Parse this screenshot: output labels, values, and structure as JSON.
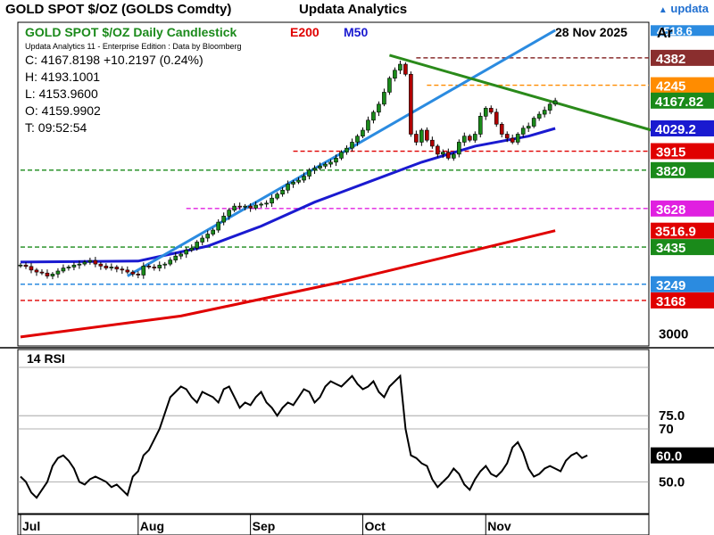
{
  "header": {
    "ticker_title": "GOLD SPOT $/OZ (GOLDS Comdty)",
    "app_name": "Updata Analytics",
    "logo_text": "updata",
    "logo_arrow": "▲"
  },
  "colors": {
    "green_title": "#1b8a1b",
    "e200": "#e00000",
    "m50": "#1a1ad0",
    "up_candle": "#1a8a1a",
    "down_candle": "#b00000",
    "trend_blue": "#2b8be0",
    "trend_green": "#2a8a1a"
  },
  "chart_data": [
    {
      "type": "candlestick",
      "title": "GOLD SPOT $/OZ Daily Candlestick",
      "legend": [
        "E200",
        "M50"
      ],
      "date": "28 Nov 2025",
      "source_line": "Updata Analytics 11 - Enterprise Edition : Data by Bloomberg",
      "ohlc_readout": {
        "c": "C: 4167.8198 +10.2197 (0.24%)",
        "h": "H: 4193.1001",
        "l": "L: 4153.9600",
        "o": "O: 4159.9902",
        "t": "T: 09:52:54"
      },
      "x_labels": [
        {
          "label": "Jul",
          "idx": 0
        },
        {
          "label": "Aug",
          "idx": 22
        },
        {
          "label": "Sep",
          "idx": 43
        },
        {
          "label": "Oct",
          "idx": 64
        },
        {
          "label": "Nov",
          "idx": 87
        }
      ],
      "ylim": [
        2940,
        4560
      ],
      "y_tick_labels": [
        "3000"
      ],
      "top_partial_label": "4518.6",
      "corner_label": "Ar",
      "closes": [
        3345,
        3338,
        3320,
        3310,
        3305,
        3290,
        3300,
        3315,
        3330,
        3335,
        3345,
        3350,
        3360,
        3368,
        3350,
        3340,
        3330,
        3335,
        3325,
        3320,
        3310,
        3300,
        3295,
        3340,
        3335,
        3330,
        3345,
        3350,
        3370,
        3390,
        3400,
        3420,
        3430,
        3460,
        3480,
        3500,
        3520,
        3560,
        3590,
        3620,
        3640,
        3635,
        3640,
        3630,
        3645,
        3650,
        3655,
        3680,
        3700,
        3720,
        3750,
        3760,
        3770,
        3790,
        3820,
        3830,
        3840,
        3850,
        3860,
        3880,
        3910,
        3930,
        3960,
        3990,
        4020,
        4070,
        4110,
        4150,
        4210,
        4280,
        4320,
        4350,
        4300,
        4000,
        3960,
        4020,
        3970,
        3940,
        3900,
        3910,
        3880,
        3900,
        3960,
        3990,
        3970,
        4000,
        4090,
        4130,
        4110,
        4050,
        4000,
        3980,
        3960,
        4000,
        4030,
        4040,
        4080,
        4100,
        4120,
        4150,
        4168
      ],
      "levels": [
        {
          "value": 4382,
          "label": "4382",
          "color": "#8a2e2e",
          "start": 74
        },
        {
          "value": 4245,
          "label": "4245",
          "color": "#ff8c00",
          "start": 76
        },
        {
          "value": 3915,
          "label": "3915",
          "color": "#e00000",
          "start": 51
        },
        {
          "value": 3820,
          "label": "3820",
          "color": "#1a8a1a",
          "start": 0
        },
        {
          "value": 3628,
          "label": "3628",
          "color": "#e020e0",
          "start": 31
        },
        {
          "value": 3435,
          "label": "3435",
          "color": "#1a8a1a",
          "start": 0
        },
        {
          "value": 3249,
          "label": "3249",
          "color": "#2b8be0",
          "start": 0
        },
        {
          "value": 3168,
          "label": "3168",
          "color": "#e00000",
          "start": 0
        }
      ],
      "price_tags": [
        {
          "label": "4167.82",
          "value": 4168,
          "color": "#1a8a1a"
        },
        {
          "label": "4029.2",
          "value": 4029,
          "color": "#1a1ad0"
        },
        {
          "label": "3516.9",
          "value": 3517,
          "color": "#e00000"
        }
      ],
      "e200_series": [
        {
          "idx": 0,
          "v": 2985
        },
        {
          "idx": 30,
          "v": 3090
        },
        {
          "idx": 60,
          "v": 3260
        },
        {
          "idx": 85,
          "v": 3420
        },
        {
          "idx": 100,
          "v": 3517
        }
      ],
      "m50_series": [
        {
          "idx": 0,
          "v": 3360
        },
        {
          "idx": 22,
          "v": 3365
        },
        {
          "idx": 35,
          "v": 3440
        },
        {
          "idx": 45,
          "v": 3540
        },
        {
          "idx": 55,
          "v": 3660
        },
        {
          "idx": 65,
          "v": 3760
        },
        {
          "idx": 75,
          "v": 3860
        },
        {
          "idx": 85,
          "v": 3940
        },
        {
          "idx": 95,
          "v": 3990
        },
        {
          "idx": 100,
          "v": 4029
        }
      ],
      "trendlines": [
        {
          "name": "blue-support",
          "color": "#2b8be0",
          "from": {
            "idx": 20,
            "v": 3290
          },
          "to": {
            "idx": 100,
            "v": 4520
          }
        },
        {
          "name": "green-resistance",
          "color": "#2a8a1a",
          "from": {
            "idx": 69,
            "v": 4395
          },
          "to": {
            "idx": 118,
            "v": 4020
          }
        }
      ]
    },
    {
      "type": "line",
      "title": "14 RSI",
      "ylim": [
        38,
        100
      ],
      "y_tick_labels": [
        "75.0",
        "70",
        "50.0"
      ],
      "current_label": "60.0",
      "current_value": 60,
      "ref_levels": [
        75,
        70,
        50
      ],
      "values": [
        52,
        50,
        46,
        44,
        47,
        50,
        56,
        59,
        60,
        58,
        55,
        50,
        49,
        51,
        52,
        51,
        50,
        48,
        49,
        47,
        45,
        52,
        54,
        60,
        62,
        66,
        70,
        76,
        82,
        84,
        86,
        85,
        82,
        80,
        84,
        83,
        82,
        80,
        85,
        86,
        82,
        78,
        80,
        79,
        82,
        84,
        80,
        78,
        75,
        78,
        80,
        79,
        82,
        85,
        84,
        80,
        82,
        86,
        88,
        87,
        86,
        88,
        90,
        87,
        85,
        86,
        88,
        84,
        82,
        86,
        88,
        90,
        70,
        60,
        59,
        57,
        56,
        51,
        48,
        50,
        52,
        55,
        53,
        49,
        47,
        51,
        54,
        56,
        53,
        52,
        54,
        57,
        63,
        65,
        61,
        55,
        52,
        53,
        55,
        56,
        55,
        54,
        58,
        60,
        61,
        59,
        60
      ]
    }
  ]
}
